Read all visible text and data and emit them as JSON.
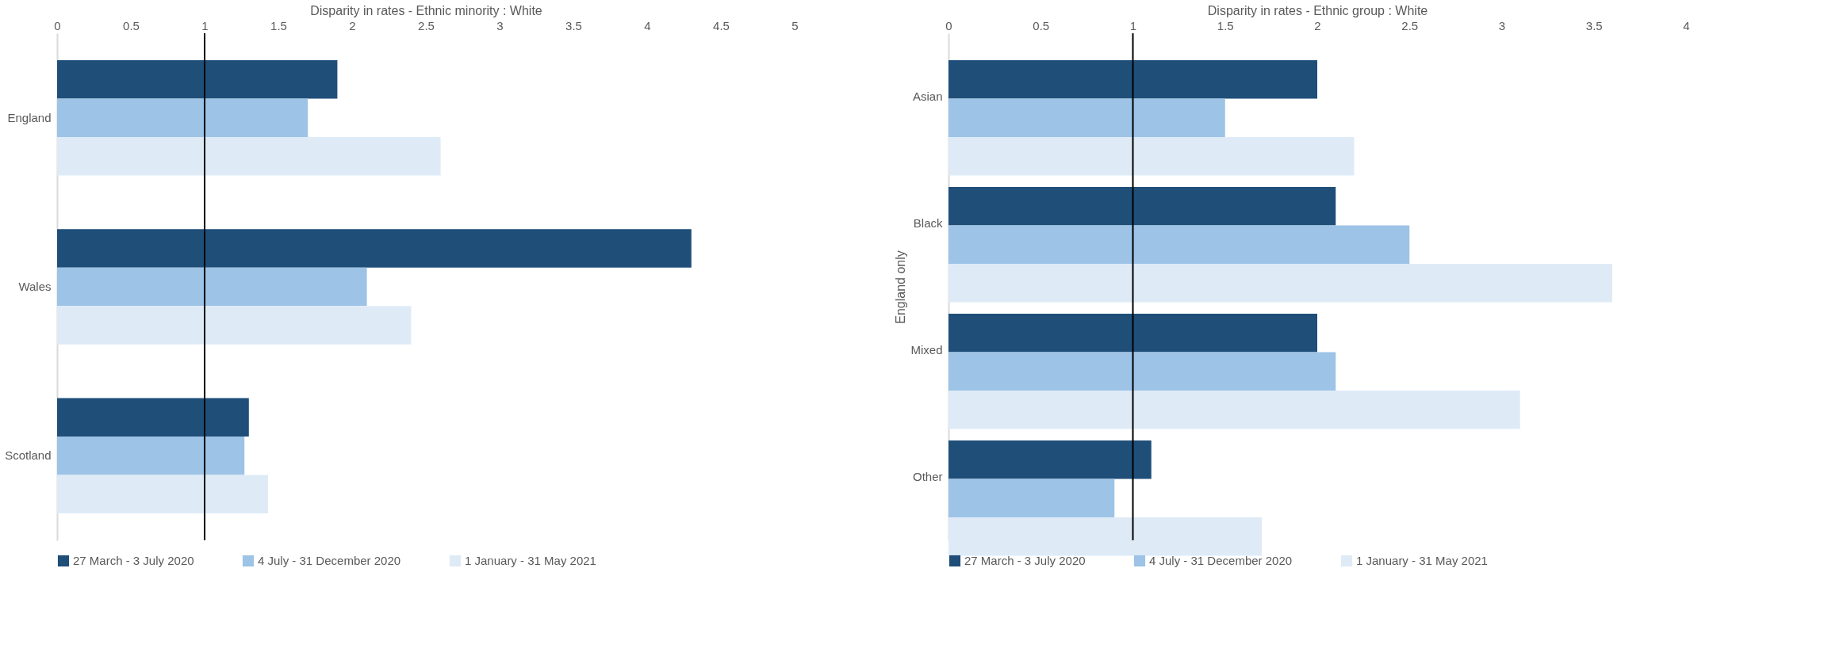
{
  "chart_data": [
    {
      "type": "bar",
      "orientation": "horizontal",
      "xlabel": "Disparity in rates - Ethnic minority : White",
      "categories": [
        "England",
        "Wales",
        "Scotland"
      ],
      "series": [
        {
          "name": "27 March - 3 July 2020",
          "color": "#1f4e79",
          "values": [
            1.9,
            4.3,
            1.3
          ]
        },
        {
          "name": "4 July - 31 December 2020",
          "color": "#9dc3e6",
          "values": [
            1.7,
            2.1,
            1.27
          ]
        },
        {
          "name": "1 January - 31 May 2021",
          "color": "#deebf7",
          "values": [
            2.6,
            2.4,
            1.43
          ]
        }
      ],
      "xlim": [
        0,
        5
      ],
      "xticks": [
        0,
        0.5,
        1,
        1.5,
        2,
        2.5,
        3,
        3.5,
        4,
        4.5,
        5
      ],
      "ref_lines": [
        {
          "axis": "x",
          "value": 1,
          "color": "#000000"
        }
      ],
      "grid": false,
      "legend": "bottom"
    },
    {
      "type": "bar",
      "orientation": "horizontal",
      "xlabel": "Disparity in rates - Ethnic group : White",
      "ylabel": "England only",
      "categories": [
        "Asian",
        "Black",
        "Mixed",
        "Other"
      ],
      "series": [
        {
          "name": "27 March - 3 July 2020",
          "color": "#1f4e79",
          "values": [
            2.0,
            2.1,
            2.0,
            1.1
          ]
        },
        {
          "name": "4 July - 31 December 2020",
          "color": "#9dc3e6",
          "values": [
            1.5,
            2.5,
            2.1,
            0.9
          ]
        },
        {
          "name": "1 January - 31 May 2021",
          "color": "#deebf7",
          "values": [
            2.2,
            3.6,
            3.1,
            1.7
          ]
        }
      ],
      "xlim": [
        0,
        4
      ],
      "xticks": [
        0,
        0.5,
        1,
        1.5,
        2,
        2.5,
        3,
        3.5,
        4
      ],
      "ref_lines": [
        {
          "axis": "x",
          "value": 1,
          "color": "#000000"
        }
      ],
      "grid": false,
      "legend": "bottom"
    }
  ]
}
